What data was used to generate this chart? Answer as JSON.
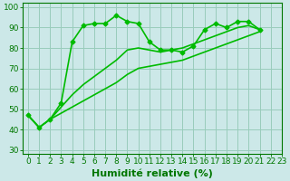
{
  "title": "",
  "xlabel": "Humidité relative (%)",
  "ylabel": "",
  "xlim": [
    -0.5,
    22.5
  ],
  "ylim": [
    28,
    102
  ],
  "yticks": [
    30,
    40,
    50,
    60,
    70,
    80,
    90,
    100
  ],
  "xticks": [
    0,
    1,
    2,
    3,
    4,
    5,
    6,
    7,
    8,
    9,
    10,
    11,
    12,
    13,
    14,
    15,
    16,
    17,
    18,
    19,
    20,
    21,
    22,
    23
  ],
  "bg_color": "#cce8e8",
  "grid_color": "#99ccbb",
  "line_color": "#00bb00",
  "line_width": 1.2,
  "marker": "D",
  "marker_size": 2.5,
  "series": [
    [
      47,
      41,
      45,
      53,
      83,
      91,
      92,
      92,
      96,
      93,
      92,
      83,
      79,
      79,
      78,
      81,
      89,
      92,
      90,
      93,
      93,
      89
    ],
    [
      47,
      41,
      45,
      51,
      57,
      62,
      66,
      70,
      74,
      79,
      80,
      79,
      78,
      79,
      80,
      82,
      84,
      86,
      88,
      90,
      91,
      89
    ],
    [
      47,
      41,
      45,
      48,
      51,
      54,
      57,
      60,
      63,
      67,
      70,
      71,
      72,
      73,
      74,
      76,
      78,
      80,
      82,
      84,
      86,
      88
    ]
  ],
  "series_markers": [
    true,
    false,
    false
  ],
  "font_color": "#007700",
  "tick_fontsize": 6.5,
  "xlabel_fontsize": 8,
  "xlabel_bold": true
}
